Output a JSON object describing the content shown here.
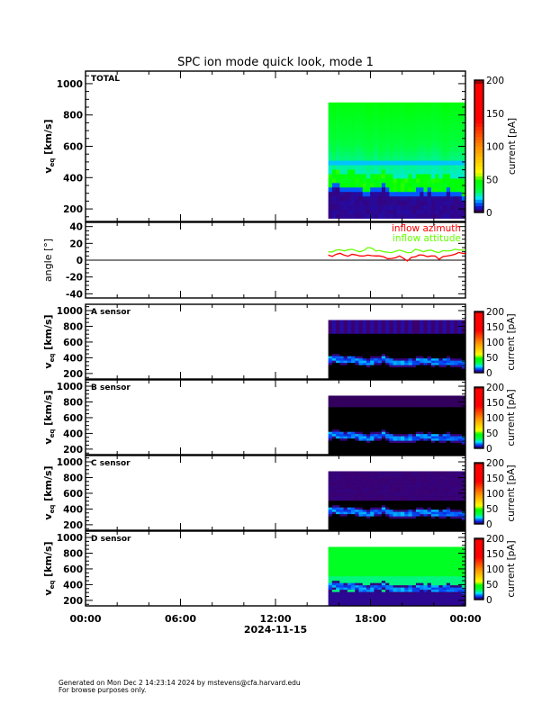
{
  "title": "SPC ion mode quick look, mode 1",
  "footer": {
    "line1": "Generated on Mon Dec  2 14:23:14 2024 by mstevens@cfa.harvard.edu",
    "line2": "For browse purposes only."
  },
  "chart_data": [
    {
      "type": "heatmap",
      "panel_label": "TOTAL",
      "ylabel": {
        "symbol": "v",
        "subscript": "eq",
        "unit": "[km/s]"
      },
      "yticks": [
        "200",
        "400",
        "600",
        "800",
        "1000"
      ],
      "ylim": [
        120,
        1080
      ],
      "colorbar": {
        "label": "current [pA]",
        "range": [
          0,
          200
        ],
        "ticks": [
          "0",
          "50",
          "100",
          "150",
          "200"
        ]
      },
      "data_time_range": [
        "15:20",
        "24:00"
      ],
      "data_speed_range": [
        140,
        880
      ],
      "peak_speed_kms": [
        380,
        390,
        370,
        380,
        360,
        350,
        360,
        390,
        350,
        330,
        340,
        350,
        360,
        360,
        340,
        360,
        340,
        330
      ]
    },
    {
      "type": "line",
      "ylabel": "angle [°]",
      "yticks": [
        "-40",
        "-20",
        "0",
        "20",
        "40"
      ],
      "ylim": [
        -45,
        45
      ],
      "legend_placement": "top-right",
      "series": [
        {
          "name": "inflow azimuth",
          "color": "#ff0000",
          "values": [
            6,
            7,
            6,
            7,
            5,
            6,
            5,
            4,
            2,
            5,
            -1,
            4,
            6,
            5,
            1,
            5,
            7,
            8
          ]
        },
        {
          "name": "inflow attitude",
          "color": "#66ff00",
          "values": [
            10,
            12,
            11,
            13,
            10,
            15,
            11,
            10,
            9,
            12,
            9,
            13,
            10,
            12,
            9,
            11,
            13,
            12
          ]
        }
      ]
    },
    {
      "type": "heatmap",
      "panel_label": "A sensor",
      "ylabel": {
        "symbol": "v",
        "subscript": "eq",
        "unit": "[km/s]"
      },
      "yticks": [
        "200",
        "400",
        "600",
        "800",
        "1000"
      ],
      "ylim": [
        130,
        1080
      ],
      "colorbar": {
        "label": "current [pA]",
        "range": [
          0,
          200
        ],
        "ticks": [
          "0",
          "50",
          "100",
          "150",
          "200"
        ]
      }
    },
    {
      "type": "heatmap",
      "panel_label": "B sensor",
      "ylabel": {
        "symbol": "v",
        "subscript": "eq",
        "unit": "[km/s]"
      },
      "yticks": [
        "200",
        "400",
        "600",
        "800",
        "1000"
      ],
      "ylim": [
        130,
        1080
      ],
      "colorbar": {
        "label": "current [pA]",
        "range": [
          0,
          200
        ],
        "ticks": [
          "0",
          "50",
          "100",
          "150",
          "200"
        ]
      }
    },
    {
      "type": "heatmap",
      "panel_label": "C sensor",
      "ylabel": {
        "symbol": "v",
        "subscript": "eq",
        "unit": "[km/s]"
      },
      "yticks": [
        "200",
        "400",
        "600",
        "800",
        "1000"
      ],
      "ylim": [
        130,
        1080
      ],
      "colorbar": {
        "label": "current [pA]",
        "range": [
          0,
          200
        ],
        "ticks": [
          "0",
          "50",
          "100",
          "150",
          "200"
        ]
      }
    },
    {
      "type": "heatmap",
      "panel_label": "D sensor",
      "ylabel": {
        "symbol": "v",
        "subscript": "eq",
        "unit": "[km/s]"
      },
      "yticks": [
        "200",
        "400",
        "600",
        "800",
        "1000"
      ],
      "ylim": [
        130,
        1080
      ],
      "colorbar": {
        "label": "current [pA]",
        "range": [
          0,
          200
        ],
        "ticks": [
          "0",
          "50",
          "100",
          "150",
          "200"
        ]
      }
    }
  ],
  "xaxis": {
    "ticks": [
      "00:00",
      "06:00",
      "12:00",
      "18:00",
      "00:00"
    ],
    "date": "2024-11-15",
    "range_hours": [
      0,
      24
    ]
  },
  "sample_times": [
    "15:20",
    "15:50",
    "16:20",
    "16:50",
    "17:20",
    "17:50",
    "18:20",
    "18:50",
    "19:20",
    "19:50",
    "20:20",
    "20:50",
    "21:20",
    "21:50",
    "22:20",
    "22:50",
    "23:20",
    "23:50"
  ]
}
